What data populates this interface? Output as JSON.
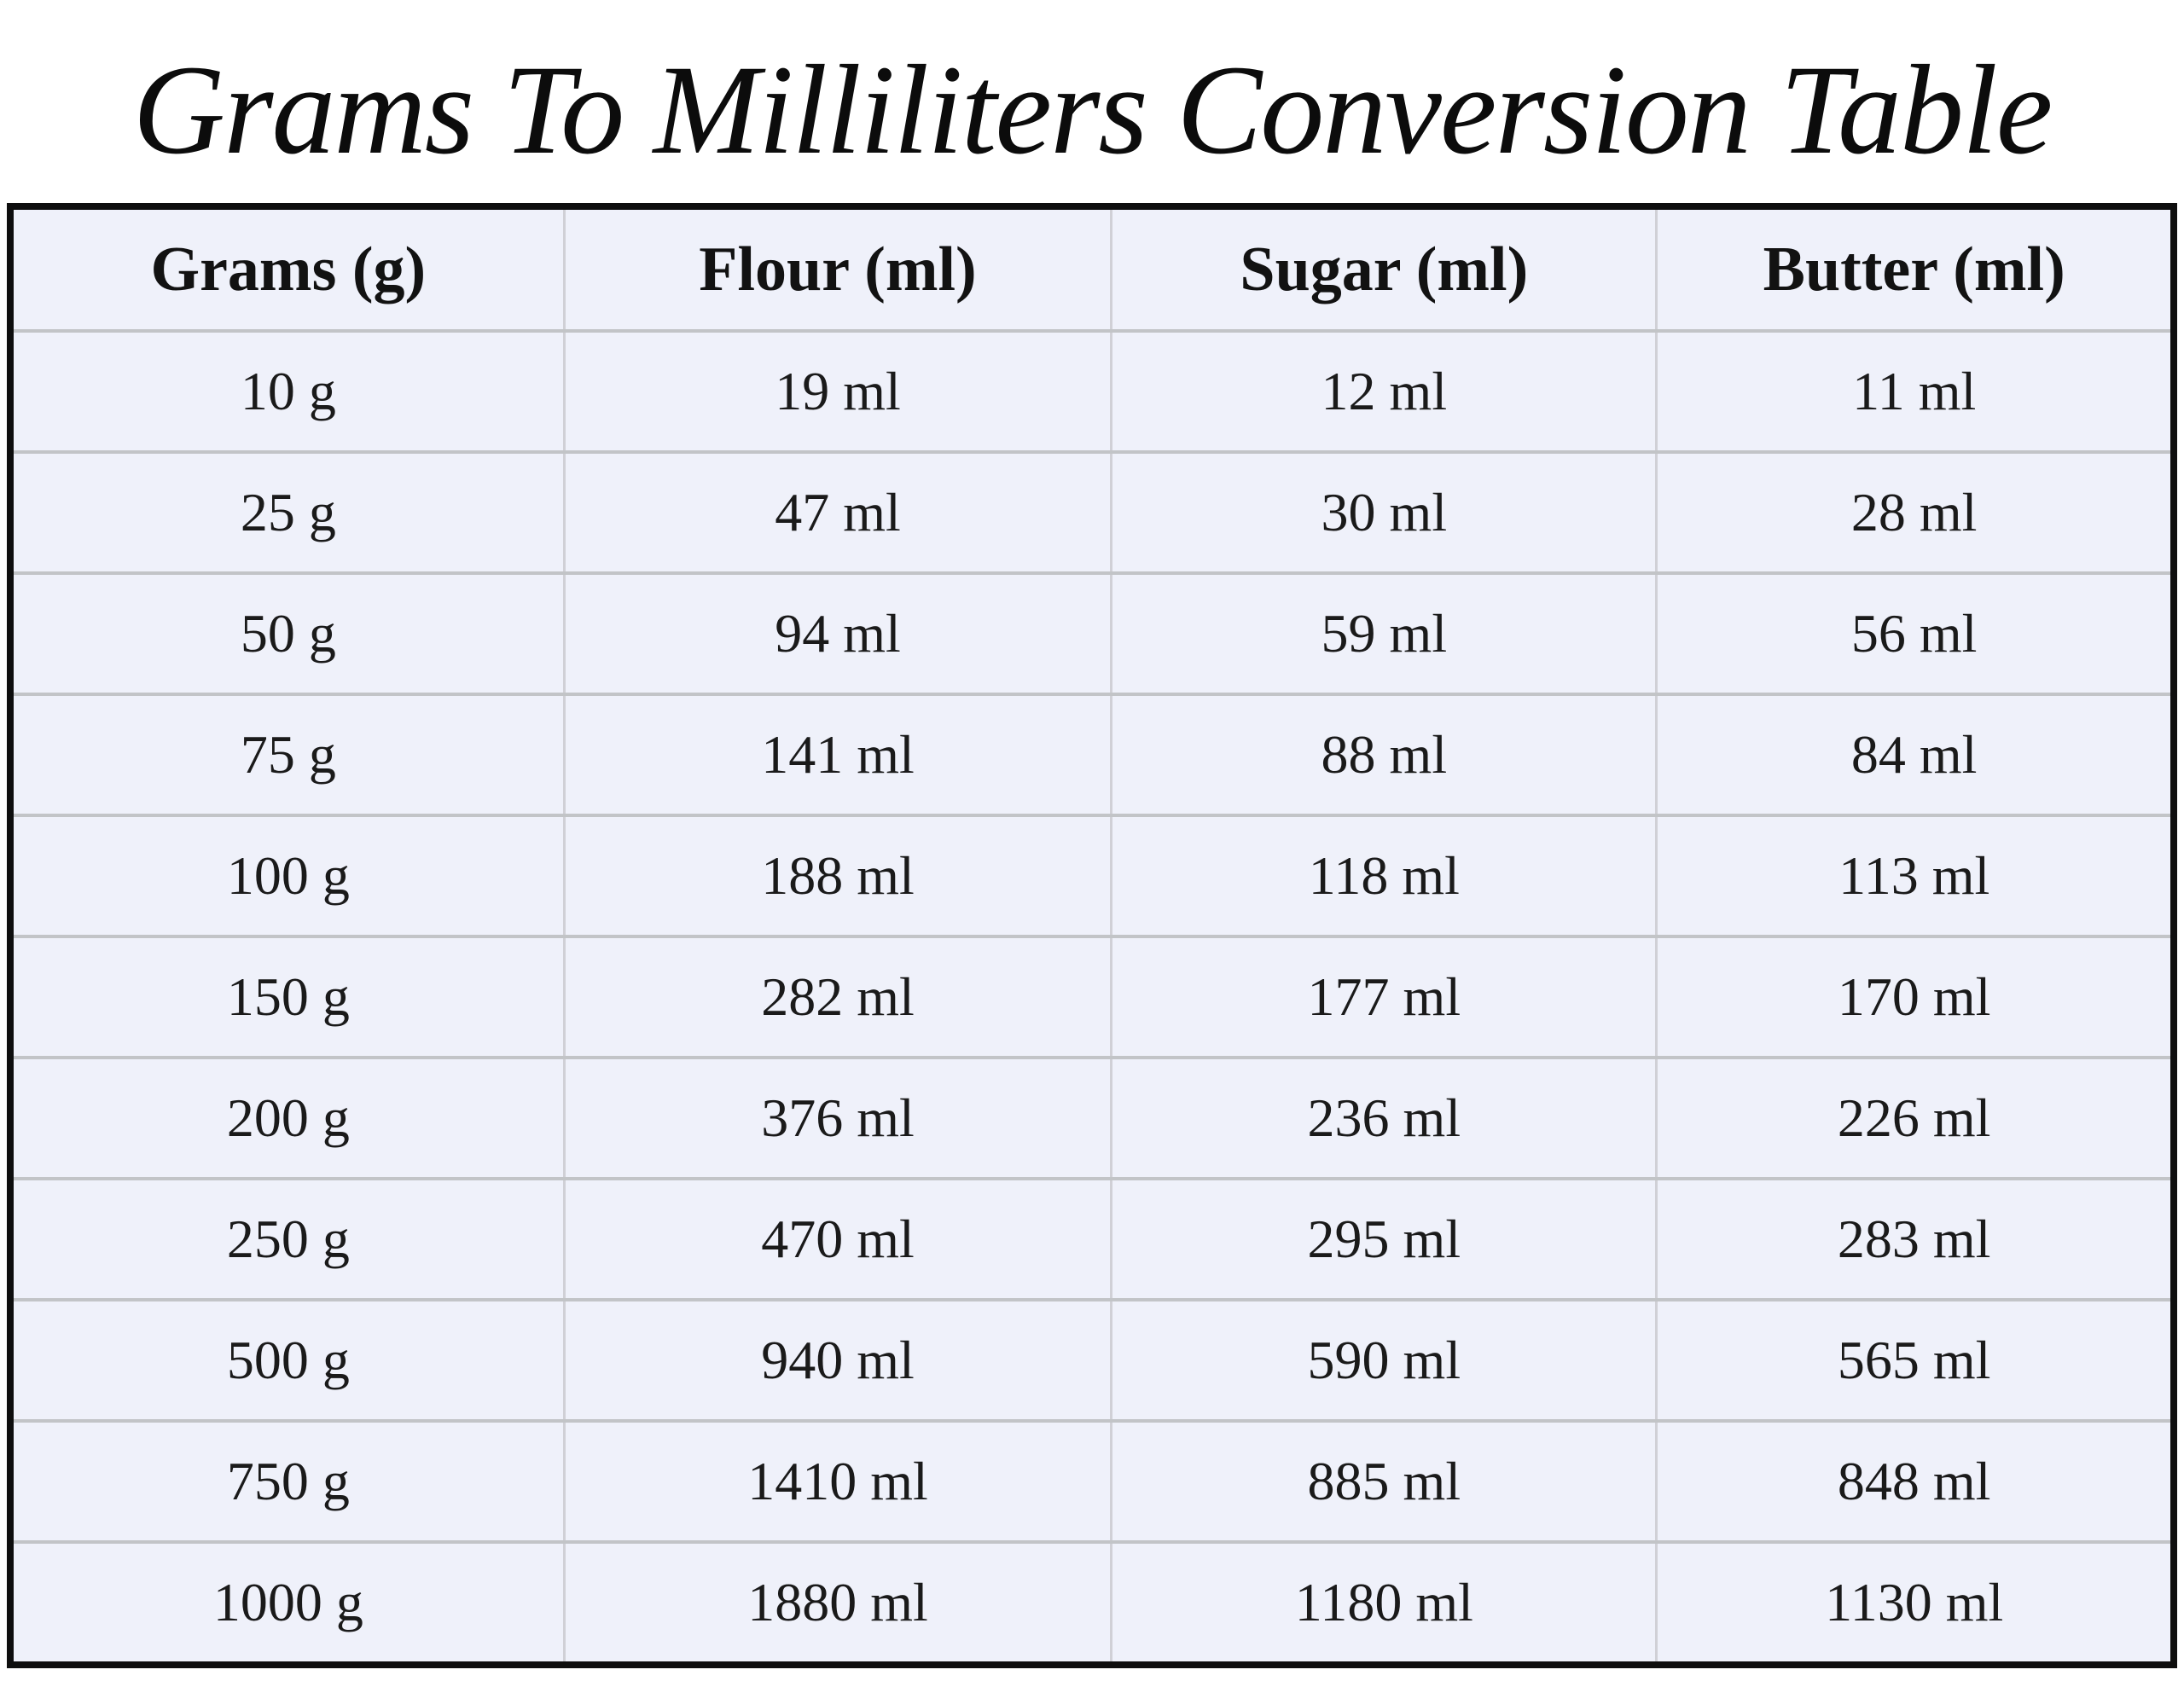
{
  "title": "Grams To Milliliters Conversion Table",
  "table": {
    "columns": [
      "Grams (g)",
      "Flour (ml)",
      "Sugar (ml)",
      "Butter (ml)"
    ],
    "rows": [
      [
        "10 g",
        "19 ml",
        "12 ml",
        "11 ml"
      ],
      [
        "25 g",
        "47 ml",
        "30 ml",
        "28 ml"
      ],
      [
        "50 g",
        "94 ml",
        "59 ml",
        "56 ml"
      ],
      [
        "75 g",
        "141 ml",
        "88 ml",
        "84 ml"
      ],
      [
        "100 g",
        "188 ml",
        "118 ml",
        "113 ml"
      ],
      [
        "150 g",
        "282 ml",
        "177 ml",
        "170 ml"
      ],
      [
        "200 g",
        "376 ml",
        "236 ml",
        "226 ml"
      ],
      [
        "250 g",
        "470 ml",
        "295 ml",
        "283 ml"
      ],
      [
        "500 g",
        "940 ml",
        "590 ml",
        "565 ml"
      ],
      [
        "750 g",
        "1410 ml",
        "885 ml",
        "848 ml"
      ],
      [
        "1000 g",
        "1880 ml",
        "1180 ml",
        "1130 ml"
      ]
    ]
  },
  "chart_data": {
    "type": "table",
    "title": "Grams To Milliliters Conversion Table",
    "columns": [
      "Grams (g)",
      "Flour (ml)",
      "Sugar (ml)",
      "Butter (ml)"
    ],
    "grams": [
      10,
      25,
      50,
      75,
      100,
      150,
      200,
      250,
      500,
      750,
      1000
    ],
    "flour_ml": [
      19,
      47,
      94,
      141,
      188,
      282,
      376,
      470,
      940,
      1410,
      1880
    ],
    "sugar_ml": [
      12,
      30,
      59,
      88,
      118,
      177,
      236,
      295,
      590,
      885,
      1180
    ],
    "butter_ml": [
      11,
      28,
      56,
      84,
      113,
      170,
      226,
      283,
      565,
      848,
      1130
    ]
  },
  "colors": {
    "page_background": "#ffffff",
    "cell_background": "#eff1fa",
    "vertical_grid_line": "#d0d0d6",
    "horizontal_grid_line": "#c2c4c7",
    "outer_border": "#0e0e0e",
    "text": "#1a1a1a"
  }
}
